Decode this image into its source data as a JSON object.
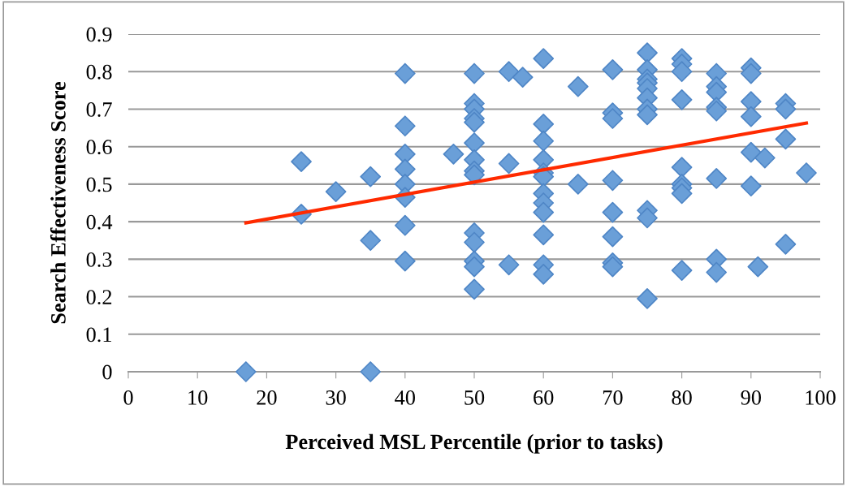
{
  "chart_data": {
    "type": "scatter",
    "xlabel": "Perceived MSL Percentile (prior to tasks)",
    "ylabel": "Search Effectiveness Score",
    "xlim": [
      0,
      100
    ],
    "xticks": [
      0,
      10,
      20,
      30,
      40,
      50,
      60,
      70,
      80,
      90,
      100
    ],
    "ylim": [
      0,
      0.9
    ],
    "yticks": [
      {
        "value": 0,
        "label": "0"
      },
      0.1,
      0.2,
      0.3,
      0.4,
      0.5,
      0.6,
      0.7,
      0.8,
      0.9
    ],
    "grid": "y",
    "legend": false,
    "marker": "diamond",
    "series": [
      {
        "color": "#6a9fd8",
        "x": [
          17,
          25,
          25,
          30,
          35,
          35,
          35,
          40,
          40,
          40,
          40,
          40,
          40,
          40,
          40,
          47,
          50,
          50,
          50,
          50,
          50,
          50,
          50,
          50,
          50,
          50,
          50,
          50,
          50,
          50,
          55,
          55,
          55,
          57,
          60,
          60,
          60,
          60,
          60,
          60,
          60,
          60,
          60,
          60,
          60,
          60,
          65,
          65,
          70,
          70,
          70,
          70,
          70,
          70,
          70,
          70,
          75,
          75,
          75,
          75,
          75,
          75,
          75,
          75,
          75,
          75,
          75,
          80,
          80,
          80,
          80,
          80,
          80,
          80,
          80,
          80,
          85,
          85,
          85,
          85,
          85,
          85,
          85,
          85,
          90,
          90,
          90,
          90,
          90,
          90,
          91,
          92,
          95,
          95,
          95,
          95,
          98
        ],
        "values": [
          0.0,
          0.56,
          0.42,
          0.48,
          0.52,
          0.35,
          0.0,
          0.795,
          0.655,
          0.58,
          0.54,
          0.5,
          0.465,
          0.39,
          0.295,
          0.58,
          0.795,
          0.715,
          0.7,
          0.675,
          0.665,
          0.61,
          0.565,
          0.535,
          0.525,
          0.37,
          0.345,
          0.295,
          0.28,
          0.22,
          0.8,
          0.555,
          0.285,
          0.785,
          0.835,
          0.66,
          0.615,
          0.565,
          0.53,
          0.52,
          0.475,
          0.45,
          0.425,
          0.365,
          0.285,
          0.26,
          0.76,
          0.5,
          0.805,
          0.69,
          0.675,
          0.51,
          0.425,
          0.36,
          0.29,
          0.28,
          0.85,
          0.805,
          0.78,
          0.77,
          0.755,
          0.73,
          0.7,
          0.685,
          0.43,
          0.41,
          0.195,
          0.835,
          0.82,
          0.8,
          0.725,
          0.545,
          0.5,
          0.49,
          0.475,
          0.27,
          0.795,
          0.76,
          0.745,
          0.705,
          0.695,
          0.515,
          0.3,
          0.265,
          0.81,
          0.795,
          0.72,
          0.68,
          0.585,
          0.495,
          0.28,
          0.57,
          0.715,
          0.7,
          0.62,
          0.34,
          0.53
        ]
      },
      {
        "type": "line",
        "color": "#ff2a00",
        "marker": "none",
        "x": [
          17,
          98
        ],
        "values": [
          0.397,
          0.663
        ]
      }
    ]
  }
}
